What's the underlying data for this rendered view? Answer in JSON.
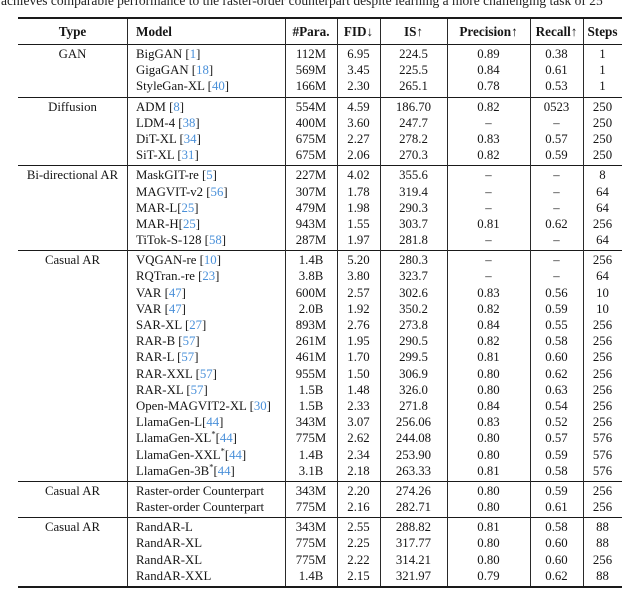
{
  "caption": "achieves comparable performance to the raster-order counterpart despite learning a more challenging task of 25",
  "colors": {
    "reference_link": "#4a90d9",
    "text": "#151515",
    "rule": "#1a1a1a"
  },
  "table": {
    "columns": [
      "Type",
      "Model",
      "#Para.",
      "FID↓",
      "IS↑",
      "Precision↑",
      "Recall↑",
      "Steps"
    ],
    "dash": "–",
    "sections": [
      {
        "type": "GAN",
        "rows": [
          {
            "name": "BigGAN",
            "ref": "1",
            "sp": true,
            "star": false,
            "para": "112M",
            "fid": "6.95",
            "is": "224.5",
            "prec": "0.89",
            "rec": "0.38",
            "steps": "1"
          },
          {
            "name": "GigaGAN",
            "ref": "18",
            "sp": true,
            "star": false,
            "para": "569M",
            "fid": "3.45",
            "is": "225.5",
            "prec": "0.84",
            "rec": "0.61",
            "steps": "1"
          },
          {
            "name": "StyleGan-XL",
            "ref": "40",
            "sp": true,
            "star": false,
            "para": "166M",
            "fid": "2.30",
            "is": "265.1",
            "prec": "0.78",
            "rec": "0.53",
            "steps": "1"
          }
        ]
      },
      {
        "type": "Diffusion",
        "rows": [
          {
            "name": "ADM",
            "ref": "8",
            "sp": true,
            "star": false,
            "para": "554M",
            "fid": "4.59",
            "is": "186.70",
            "prec": "0.82",
            "rec": "0523",
            "steps": "250"
          },
          {
            "name": "LDM-4",
            "ref": "38",
            "sp": true,
            "star": false,
            "para": "400M",
            "fid": "3.60",
            "is": "247.7",
            "prec": "–",
            "rec": "–",
            "steps": "250"
          },
          {
            "name": "DiT-XL",
            "ref": "34",
            "sp": true,
            "star": false,
            "para": "675M",
            "fid": "2.27",
            "is": "278.2",
            "prec": "0.83",
            "rec": "0.57",
            "steps": "250"
          },
          {
            "name": "SiT-XL",
            "ref": "31",
            "sp": true,
            "star": false,
            "para": "675M",
            "fid": "2.06",
            "is": "270.3",
            "prec": "0.82",
            "rec": "0.59",
            "steps": "250"
          }
        ]
      },
      {
        "type": "Bi-directional AR",
        "rows": [
          {
            "name": "MaskGIT-re",
            "ref": "5",
            "sp": true,
            "star": false,
            "para": "227M",
            "fid": "4.02",
            "is": "355.6",
            "prec": "–",
            "rec": "–",
            "steps": "8"
          },
          {
            "name": "MAGVIT-v2",
            "ref": "56",
            "sp": true,
            "star": false,
            "para": "307M",
            "fid": "1.78",
            "is": "319.4",
            "prec": "–",
            "rec": "–",
            "steps": "64"
          },
          {
            "name": "MAR-L",
            "ref": "25",
            "sp": false,
            "star": false,
            "para": "479M",
            "fid": "1.98",
            "is": "290.3",
            "prec": "–",
            "rec": "–",
            "steps": "64"
          },
          {
            "name": "MAR-H",
            "ref": "25",
            "sp": false,
            "star": false,
            "para": "943M",
            "fid": "1.55",
            "is": "303.7",
            "prec": "0.81",
            "rec": "0.62",
            "steps": "256"
          },
          {
            "name": "TiTok-S-128",
            "ref": "58",
            "sp": true,
            "star": false,
            "para": "287M",
            "fid": "1.97",
            "is": "281.8",
            "prec": "–",
            "rec": "–",
            "steps": "64"
          }
        ]
      },
      {
        "type": "Casual AR",
        "rows": [
          {
            "name": "VQGAN-re",
            "ref": "10",
            "sp": true,
            "star": false,
            "para": "1.4B",
            "fid": "5.20",
            "is": "280.3",
            "prec": "–",
            "rec": "–",
            "steps": "256"
          },
          {
            "name": "RQTran.-re",
            "ref": "23",
            "sp": true,
            "star": false,
            "para": "3.8B",
            "fid": "3.80",
            "is": "323.7",
            "prec": "–",
            "rec": "–",
            "steps": "64"
          },
          {
            "name": "VAR",
            "ref": "47",
            "sp": true,
            "star": false,
            "para": "600M",
            "fid": "2.57",
            "is": "302.6",
            "prec": "0.83",
            "rec": "0.56",
            "steps": "10"
          },
          {
            "name": "VAR",
            "ref": "47",
            "sp": true,
            "star": false,
            "para": "2.0B",
            "fid": "1.92",
            "is": "350.2",
            "prec": "0.82",
            "rec": "0.59",
            "steps": "10"
          },
          {
            "name": "SAR-XL",
            "ref": "27",
            "sp": true,
            "star": false,
            "para": "893M",
            "fid": "2.76",
            "is": "273.8",
            "prec": "0.84",
            "rec": "0.55",
            "steps": "256"
          },
          {
            "name": "RAR-B",
            "ref": "57",
            "sp": true,
            "star": false,
            "para": "261M",
            "fid": "1.95",
            "is": "290.5",
            "prec": "0.82",
            "rec": "0.58",
            "steps": "256"
          },
          {
            "name": "RAR-L",
            "ref": "57",
            "sp": true,
            "star": false,
            "para": "461M",
            "fid": "1.70",
            "is": "299.5",
            "prec": "0.81",
            "rec": "0.60",
            "steps": "256"
          },
          {
            "name": "RAR-XXL",
            "ref": "57",
            "sp": true,
            "star": false,
            "para": "955M",
            "fid": "1.50",
            "is": "306.9",
            "prec": "0.80",
            "rec": "0.62",
            "steps": "256"
          },
          {
            "name": "RAR-XL",
            "ref": "57",
            "sp": true,
            "star": false,
            "para": "1.5B",
            "fid": "1.48",
            "is": "326.0",
            "prec": "0.80",
            "rec": "0.63",
            "steps": "256"
          },
          {
            "name": "Open-MAGVIT2-XL",
            "ref": "30",
            "sp": true,
            "star": false,
            "para": "1.5B",
            "fid": "2.33",
            "is": "271.8",
            "prec": "0.84",
            "rec": "0.54",
            "steps": "256"
          },
          {
            "name": "LlamaGen-L",
            "ref": "44",
            "sp": false,
            "star": false,
            "para": "343M",
            "fid": "3.07",
            "is": "256.06",
            "prec": "0.83",
            "rec": "0.52",
            "steps": "256"
          },
          {
            "name": "LlamaGen-XL",
            "ref": "44",
            "sp": false,
            "star": true,
            "para": "775M",
            "fid": "2.62",
            "is": "244.08",
            "prec": "0.80",
            "rec": "0.57",
            "steps": "576"
          },
          {
            "name": "LlamaGen-XXL",
            "ref": "44",
            "sp": false,
            "star": true,
            "para": "1.4B",
            "fid": "2.34",
            "is": "253.90",
            "prec": "0.80",
            "rec": "0.59",
            "steps": "576"
          },
          {
            "name": "LlamaGen-3B",
            "ref": "44",
            "sp": false,
            "star": true,
            "para": "3.1B",
            "fid": "2.18",
            "is": "263.33",
            "prec": "0.81",
            "rec": "0.58",
            "steps": "576"
          }
        ]
      },
      {
        "type": "Casual AR",
        "rows": [
          {
            "name": "Raster-order Counterpart",
            "ref": null,
            "sp": false,
            "star": false,
            "para": "343M",
            "fid": "2.20",
            "is": "274.26",
            "prec": "0.80",
            "rec": "0.59",
            "steps": "256"
          },
          {
            "name": "Raster-order Counterpart",
            "ref": null,
            "sp": false,
            "star": false,
            "para": "775M",
            "fid": "2.16",
            "is": "282.71",
            "prec": "0.80",
            "rec": "0.61",
            "steps": "256"
          }
        ]
      },
      {
        "type": "Casual AR",
        "rows": [
          {
            "name": "RandAR-L",
            "ref": null,
            "sp": false,
            "star": false,
            "para": "343M",
            "fid": "2.55",
            "is": "288.82",
            "prec": "0.81",
            "rec": "0.58",
            "steps": "88"
          },
          {
            "name": "RandAR-XL",
            "ref": null,
            "sp": false,
            "star": false,
            "para": "775M",
            "fid": "2.25",
            "is": "317.77",
            "prec": "0.80",
            "rec": "0.60",
            "steps": "88"
          },
          {
            "name": "RandAR-XL",
            "ref": null,
            "sp": false,
            "star": false,
            "para": "775M",
            "fid": "2.22",
            "is": "314.21",
            "prec": "0.80",
            "rec": "0.60",
            "steps": "256"
          },
          {
            "name": "RandAR-XXL",
            "ref": null,
            "sp": false,
            "star": false,
            "para": "1.4B",
            "fid": "2.15",
            "is": "321.97",
            "prec": "0.79",
            "rec": "0.62",
            "steps": "88"
          }
        ]
      }
    ]
  }
}
